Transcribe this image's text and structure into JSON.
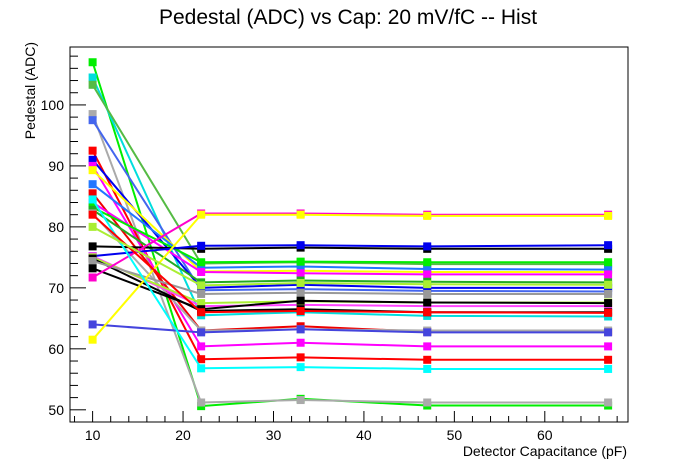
{
  "chart_data": {
    "type": "line",
    "title": "Pedestal (ADC) vs Cap: 20 mV/fC -- Hist",
    "xlabel": "Detector Capacitance (pF)",
    "ylabel": "Pedestal (ADC)",
    "x": [
      10,
      22,
      33,
      47,
      67
    ],
    "xlim": [
      7.5,
      69.2
    ],
    "ylim": [
      48,
      109.5
    ],
    "xticks": [
      10,
      20,
      30,
      40,
      50,
      60
    ],
    "yticks": [
      50,
      60,
      70,
      80,
      90,
      100
    ],
    "grid": false,
    "series": [
      {
        "color": "#00ee00",
        "values": [
          107.0,
          50.6,
          51.8,
          50.7,
          50.7
        ]
      },
      {
        "color": "#00dddd",
        "values": [
          104.5,
          65.5,
          66.0,
          65.4,
          65.3
        ]
      },
      {
        "color": "#55bb44",
        "values": [
          103.3,
          74.0,
          74.2,
          73.9,
          73.9
        ]
      },
      {
        "color": "#aaaaaa",
        "values": [
          98.5,
          51.2,
          51.6,
          51.2,
          51.2
        ]
      },
      {
        "color": "#4466ee",
        "values": [
          97.5,
          69.6,
          69.8,
          69.5,
          69.4
        ]
      },
      {
        "color": "#ff0000",
        "values": [
          92.5,
          58.3,
          58.6,
          58.2,
          58.2
        ]
      },
      {
        "color": "#0000ee",
        "values": [
          91.0,
          70.0,
          70.5,
          70.0,
          70.0
        ]
      },
      {
        "color": "#ff00ff",
        "values": [
          90.0,
          60.4,
          61.0,
          60.4,
          60.4
        ]
      },
      {
        "color": "#ffff00",
        "values": [
          89.3,
          72.7,
          72.8,
          72.6,
          72.6
        ]
      },
      {
        "color": "#2277ff",
        "values": [
          87.0,
          73.3,
          73.5,
          73.1,
          73.0
        ]
      },
      {
        "color": "#ee0000",
        "values": [
          85.5,
          63.0,
          63.7,
          62.8,
          62.8
        ]
      },
      {
        "color": "#ff00ff",
        "values": [
          84.0,
          72.6,
          72.4,
          72.2,
          72.2
        ]
      },
      {
        "color": "#00ee00",
        "values": [
          83.2,
          74.2,
          74.3,
          74.2,
          74.2
        ]
      },
      {
        "color": "#22aa22",
        "values": [
          82.8,
          70.9,
          71.2,
          71.0,
          70.9
        ]
      },
      {
        "color": "#aaaaaa",
        "values": [
          82.2,
          63.0,
          63.2,
          63.0,
          63.0
        ]
      },
      {
        "color": "#000000",
        "values": [
          76.8,
          76.4,
          76.6,
          76.4,
          76.4
        ]
      },
      {
        "color": "#0000ee",
        "values": [
          75.2,
          76.9,
          77.0,
          76.8,
          77.0
        ]
      },
      {
        "color": "#ff44ff",
        "values": [
          75.2,
          67.0,
          67.2,
          67.0,
          67.0
        ]
      },
      {
        "color": "#aaee33",
        "values": [
          75.0,
          67.5,
          67.8,
          67.6,
          67.6
        ]
      },
      {
        "color": "#000000",
        "values": [
          74.8,
          66.2,
          66.5,
          66.0,
          66.0
        ]
      },
      {
        "color": "#999999",
        "values": [
          74.4,
          69.0,
          69.2,
          69.0,
          69.0
        ]
      },
      {
        "color": "#000000",
        "values": [
          73.2,
          66.5,
          67.9,
          67.6,
          67.5
        ]
      },
      {
        "color": "#ff00cc",
        "values": [
          71.7,
          82.2,
          82.2,
          82.0,
          82.0
        ]
      },
      {
        "color": "#4444dd",
        "values": [
          64.0,
          62.7,
          63.2,
          62.7,
          62.7
        ]
      },
      {
        "color": "#ffff00",
        "values": [
          61.5,
          82.0,
          82.0,
          81.8,
          81.8
        ]
      },
      {
        "color": "#00ffff",
        "values": [
          84.5,
          56.8,
          57.0,
          56.7,
          56.7
        ]
      },
      {
        "color": "#ff0000",
        "values": [
          82.0,
          66.0,
          66.2,
          66.0,
          65.9
        ]
      },
      {
        "color": "#aaee33",
        "values": [
          80.0,
          70.4,
          70.8,
          70.6,
          70.5
        ]
      }
    ]
  }
}
